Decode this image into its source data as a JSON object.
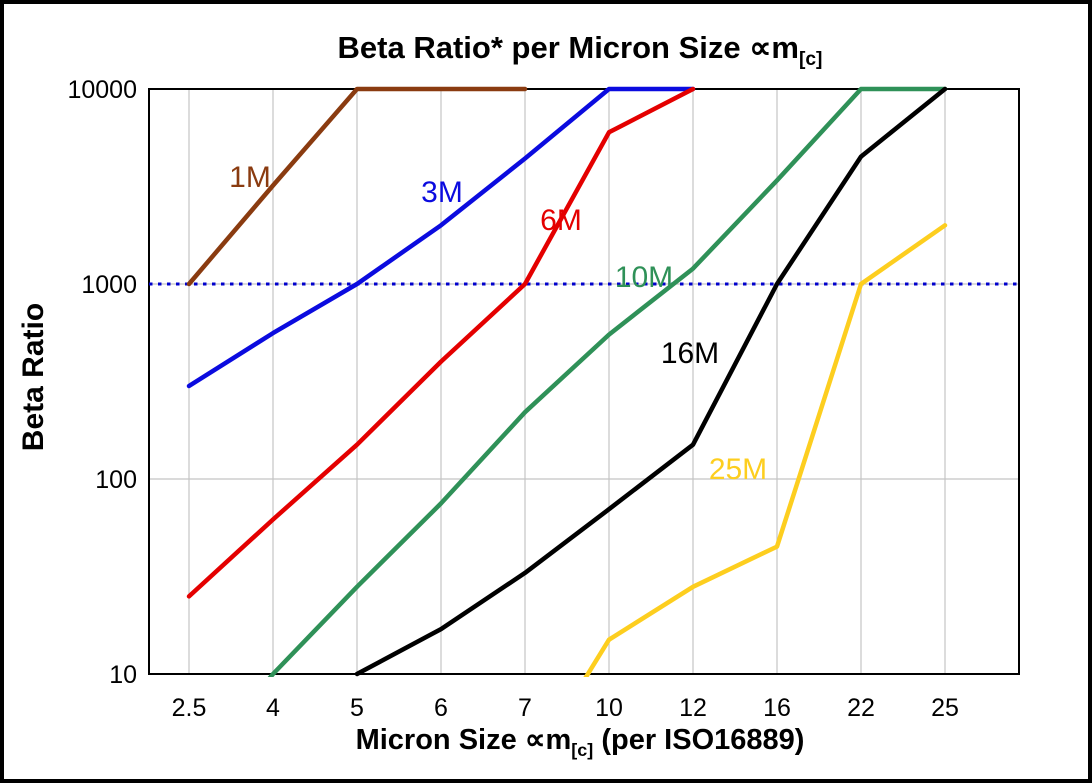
{
  "labels": {
    "title_main": "Beta Ratio* per Micron Size ",
    "title_sym": "∝m",
    "title_sub": "[c]",
    "xlabel_pre": "Micron Size ",
    "xlabel_sym": "∝m",
    "xlabel_sub": "[c]",
    "xlabel_post": " (per ISO16889)",
    "ylabel": "Beta Ratio"
  },
  "chart_data": {
    "type": "line",
    "title": "Beta Ratio* per Micron Size ∝m[c]",
    "xlabel": "Micron Size ∝m[c] (per ISO16889)",
    "ylabel": "Beta Ratio",
    "x_categories": [
      "2.5",
      "4",
      "5",
      "6",
      "7",
      "10",
      "12",
      "16",
      "22",
      "25"
    ],
    "y_ticks": [
      "10",
      "100",
      "1000",
      "10000"
    ],
    "y_scale": "log",
    "ylim": [
      10,
      10000
    ],
    "grid": true,
    "grid_color": "#c4c4c4",
    "legend_position": "inline-labels",
    "reference_line": {
      "y": 1000,
      "color": "#0000cc",
      "style": "dotted"
    },
    "series": [
      {
        "name": "1M",
        "color": "#8a3b10",
        "x": [
          "2.5",
          "4",
          "5",
          "6",
          "7"
        ],
        "values": [
          1000,
          3200,
          10000,
          10000,
          10000
        ],
        "label_pos": [
          246,
          183
        ]
      },
      {
        "name": "3M",
        "color": "#0b0bdf",
        "x": [
          "2.5",
          "4",
          "5",
          "6",
          "7",
          "10",
          "12"
        ],
        "values": [
          300,
          560,
          1000,
          2000,
          4400,
          10000,
          10000
        ],
        "label_pos": [
          438,
          198
        ]
      },
      {
        "name": "6M",
        "color": "#e40000",
        "x": [
          "2.5",
          "4",
          "5",
          "6",
          "7",
          "10",
          "12"
        ],
        "values": [
          25,
          62,
          150,
          400,
          1000,
          6000,
          10000
        ],
        "label_pos": [
          557,
          226
        ]
      },
      {
        "name": "10M",
        "color": "#2f9158",
        "x": [
          "2.5",
          "4",
          "5",
          "6",
          "7",
          "10",
          "12",
          "16",
          "22",
          "25"
        ],
        "values": [
          3,
          10,
          28,
          75,
          220,
          550,
          1200,
          3400,
          10000,
          10000
        ],
        "label_pos": [
          640,
          283
        ]
      },
      {
        "name": "16M",
        "color": "#000000",
        "x": [
          "5",
          "6",
          "7",
          "10",
          "12",
          "16",
          "22",
          "25"
        ],
        "values": [
          10,
          17,
          33,
          70,
          150,
          1000,
          4500,
          10000
        ],
        "label_pos": [
          686,
          359
        ]
      },
      {
        "name": "25M",
        "color": "#fdce1f",
        "x": [
          "7",
          "10",
          "12",
          "16",
          "22",
          "25"
        ],
        "values": [
          3,
          15,
          28,
          45,
          1000,
          2000
        ],
        "label_pos": [
          734,
          475
        ]
      }
    ]
  }
}
